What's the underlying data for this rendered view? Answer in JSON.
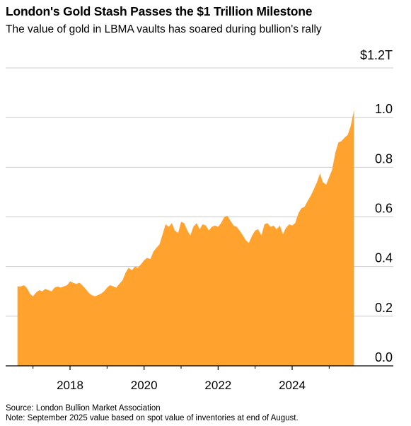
{
  "title": "London's Gold Stash Passes the $1 Trillion Milestone",
  "subtitle": "The value of gold in LBMA vaults has soared during bullion's rally",
  "source": "Source: London Bullion Market Association",
  "note": "Note: September 2025 value based on spot value of inventories at end of August.",
  "colors": {
    "area": "#FFA22E",
    "grid": "#cccccc",
    "axis": "#000000"
  },
  "chart_data": {
    "type": "area",
    "ylim": [
      0,
      1.2
    ],
    "xlim": [
      2016.45,
      2026.3
    ],
    "y_ticks": [
      {
        "value": 1.2,
        "label": "$1.2T"
      },
      {
        "value": 1.0,
        "label": "1.0"
      },
      {
        "value": 0.8,
        "label": "0.8"
      },
      {
        "value": 0.6,
        "label": "0.6"
      },
      {
        "value": 0.4,
        "label": "0.4"
      },
      {
        "value": 0.2,
        "label": "0.2"
      },
      {
        "value": 0.0,
        "label": "0.0"
      }
    ],
    "x_ticks": [
      {
        "value": 2018,
        "label": "2018"
      },
      {
        "value": 2020,
        "label": "2020"
      },
      {
        "value": 2022,
        "label": "2022"
      },
      {
        "value": 2024,
        "label": "2024"
      }
    ],
    "series": [
      {
        "points": [
          [
            2016.58,
            0.32
          ],
          [
            2016.67,
            0.32
          ],
          [
            2016.75,
            0.325
          ],
          [
            2016.83,
            0.315
          ],
          [
            2016.92,
            0.29
          ],
          [
            2017.0,
            0.28
          ],
          [
            2017.08,
            0.295
          ],
          [
            2017.17,
            0.305
          ],
          [
            2017.25,
            0.3
          ],
          [
            2017.33,
            0.31
          ],
          [
            2017.42,
            0.305
          ],
          [
            2017.5,
            0.3
          ],
          [
            2017.58,
            0.315
          ],
          [
            2017.67,
            0.32
          ],
          [
            2017.75,
            0.315
          ],
          [
            2017.83,
            0.32
          ],
          [
            2017.92,
            0.325
          ],
          [
            2018.0,
            0.34
          ],
          [
            2018.08,
            0.335
          ],
          [
            2018.17,
            0.33
          ],
          [
            2018.25,
            0.335
          ],
          [
            2018.33,
            0.325
          ],
          [
            2018.42,
            0.31
          ],
          [
            2018.5,
            0.295
          ],
          [
            2018.58,
            0.285
          ],
          [
            2018.67,
            0.28
          ],
          [
            2018.75,
            0.285
          ],
          [
            2018.83,
            0.29
          ],
          [
            2018.92,
            0.3
          ],
          [
            2019.0,
            0.315
          ],
          [
            2019.08,
            0.325
          ],
          [
            2019.17,
            0.32
          ],
          [
            2019.25,
            0.315
          ],
          [
            2019.33,
            0.33
          ],
          [
            2019.42,
            0.345
          ],
          [
            2019.5,
            0.375
          ],
          [
            2019.58,
            0.395
          ],
          [
            2019.67,
            0.385
          ],
          [
            2019.75,
            0.4
          ],
          [
            2019.83,
            0.395
          ],
          [
            2019.92,
            0.41
          ],
          [
            2020.0,
            0.425
          ],
          [
            2020.08,
            0.435
          ],
          [
            2020.17,
            0.43
          ],
          [
            2020.25,
            0.46
          ],
          [
            2020.33,
            0.475
          ],
          [
            2020.42,
            0.49
          ],
          [
            2020.5,
            0.53
          ],
          [
            2020.58,
            0.57
          ],
          [
            2020.67,
            0.56
          ],
          [
            2020.75,
            0.575
          ],
          [
            2020.83,
            0.545
          ],
          [
            2020.92,
            0.535
          ],
          [
            2021.0,
            0.58
          ],
          [
            2021.08,
            0.575
          ],
          [
            2021.17,
            0.545
          ],
          [
            2021.25,
            0.525
          ],
          [
            2021.33,
            0.56
          ],
          [
            2021.42,
            0.575
          ],
          [
            2021.5,
            0.55
          ],
          [
            2021.58,
            0.57
          ],
          [
            2021.67,
            0.565
          ],
          [
            2021.75,
            0.545
          ],
          [
            2021.83,
            0.56
          ],
          [
            2021.92,
            0.565
          ],
          [
            2022.0,
            0.56
          ],
          [
            2022.08,
            0.575
          ],
          [
            2022.17,
            0.6
          ],
          [
            2022.25,
            0.605
          ],
          [
            2022.33,
            0.585
          ],
          [
            2022.42,
            0.565
          ],
          [
            2022.5,
            0.56
          ],
          [
            2022.58,
            0.545
          ],
          [
            2022.67,
            0.525
          ],
          [
            2022.75,
            0.505
          ],
          [
            2022.83,
            0.495
          ],
          [
            2022.92,
            0.525
          ],
          [
            2023.0,
            0.545
          ],
          [
            2023.08,
            0.55
          ],
          [
            2023.17,
            0.525
          ],
          [
            2023.25,
            0.57
          ],
          [
            2023.33,
            0.575
          ],
          [
            2023.42,
            0.56
          ],
          [
            2023.5,
            0.565
          ],
          [
            2023.58,
            0.55
          ],
          [
            2023.67,
            0.565
          ],
          [
            2023.75,
            0.53
          ],
          [
            2023.83,
            0.555
          ],
          [
            2023.92,
            0.57
          ],
          [
            2024.0,
            0.565
          ],
          [
            2024.08,
            0.575
          ],
          [
            2024.17,
            0.615
          ],
          [
            2024.25,
            0.635
          ],
          [
            2024.33,
            0.64
          ],
          [
            2024.42,
            0.665
          ],
          [
            2024.5,
            0.685
          ],
          [
            2024.58,
            0.71
          ],
          [
            2024.67,
            0.74
          ],
          [
            2024.75,
            0.775
          ],
          [
            2024.83,
            0.74
          ],
          [
            2024.92,
            0.73
          ],
          [
            2025.0,
            0.76
          ],
          [
            2025.08,
            0.79
          ],
          [
            2025.17,
            0.86
          ],
          [
            2025.25,
            0.9
          ],
          [
            2025.33,
            0.905
          ],
          [
            2025.42,
            0.92
          ],
          [
            2025.5,
            0.93
          ],
          [
            2025.58,
            0.965
          ],
          [
            2025.67,
            1.03
          ]
        ]
      }
    ]
  }
}
